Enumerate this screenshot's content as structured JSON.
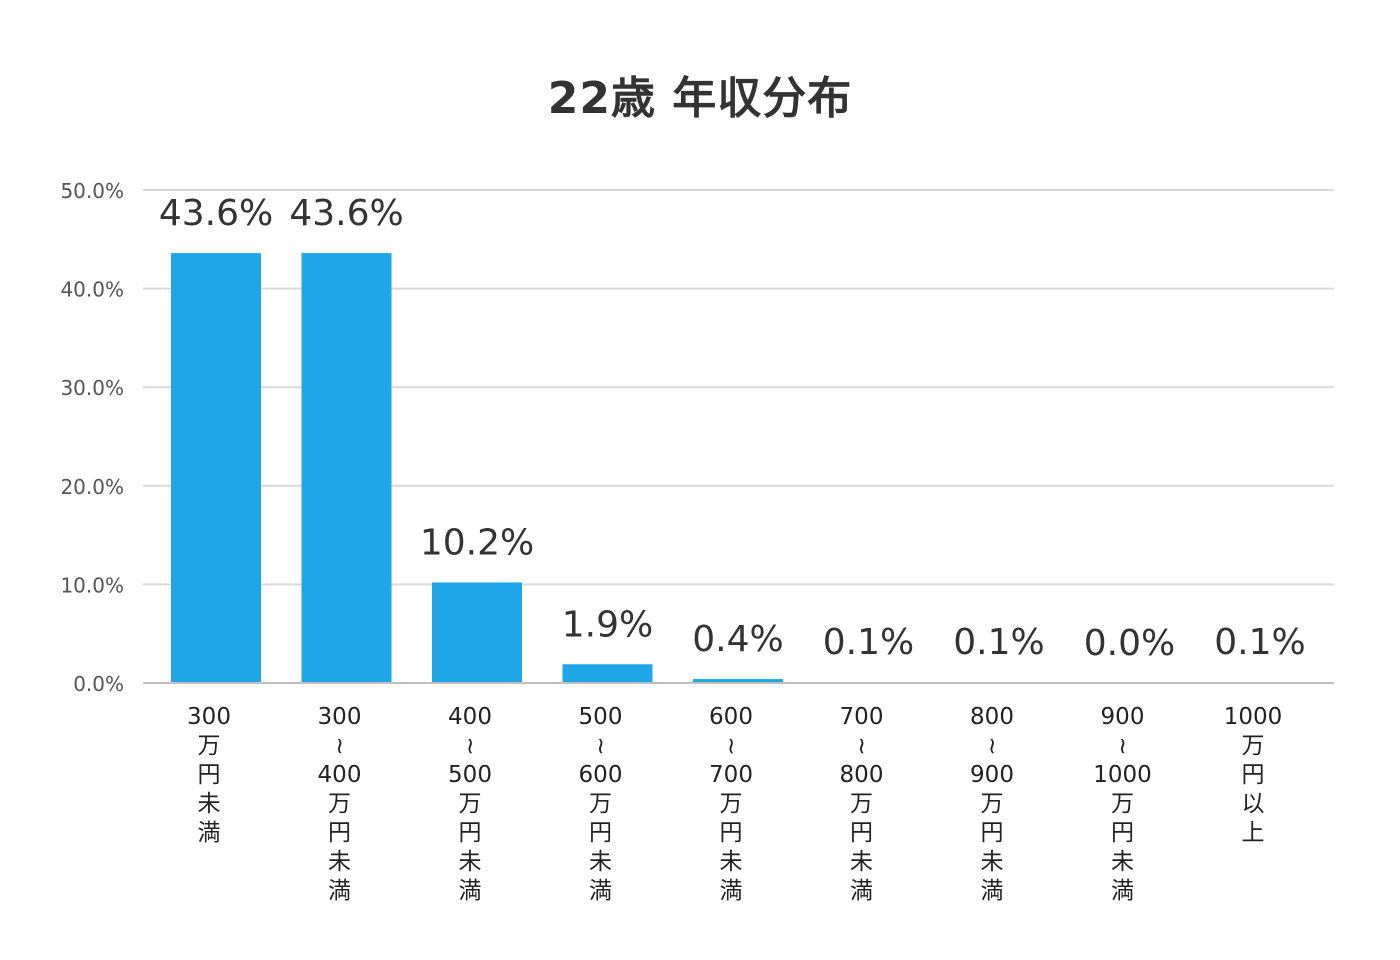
{
  "chart_data": {
    "type": "bar",
    "title": "22歳 年収分布",
    "categories": [
      [
        "300",
        "万",
        "円",
        "未",
        "満"
      ],
      [
        "300",
        "~",
        "400",
        "万",
        "円",
        "未",
        "満"
      ],
      [
        "400",
        "~",
        "500",
        "万",
        "円",
        "未",
        "満"
      ],
      [
        "500",
        "~",
        "600",
        "万",
        "円",
        "未",
        "満"
      ],
      [
        "600",
        "~",
        "700",
        "万",
        "円",
        "未",
        "満"
      ],
      [
        "700",
        "~",
        "800",
        "万",
        "円",
        "未",
        "満"
      ],
      [
        "800",
        "~",
        "900",
        "万",
        "円",
        "未",
        "満"
      ],
      [
        "900",
        "~",
        "1000",
        "万",
        "円",
        "未",
        "満"
      ],
      [
        "1000",
        "万",
        "円",
        "以",
        "上"
      ]
    ],
    "values": [
      43.6,
      43.6,
      10.2,
      1.9,
      0.4,
      0.1,
      0.1,
      0.0,
      0.1
    ],
    "data_labels": [
      "43.6%",
      "43.6%",
      "10.2%",
      "1.9%",
      "0.4%",
      "0.1%",
      "0.1%",
      "0.0%",
      "0.1%"
    ],
    "yticks": [
      "0.0%",
      "10.0%",
      "20.0%",
      "30.0%",
      "40.0%",
      "50.0%"
    ],
    "ylim": [
      0,
      50
    ],
    "grid": true,
    "colors": {
      "bar": "#1fa6e8",
      "grid": "#d9d9d9",
      "axis": "#bfbfbf"
    }
  }
}
